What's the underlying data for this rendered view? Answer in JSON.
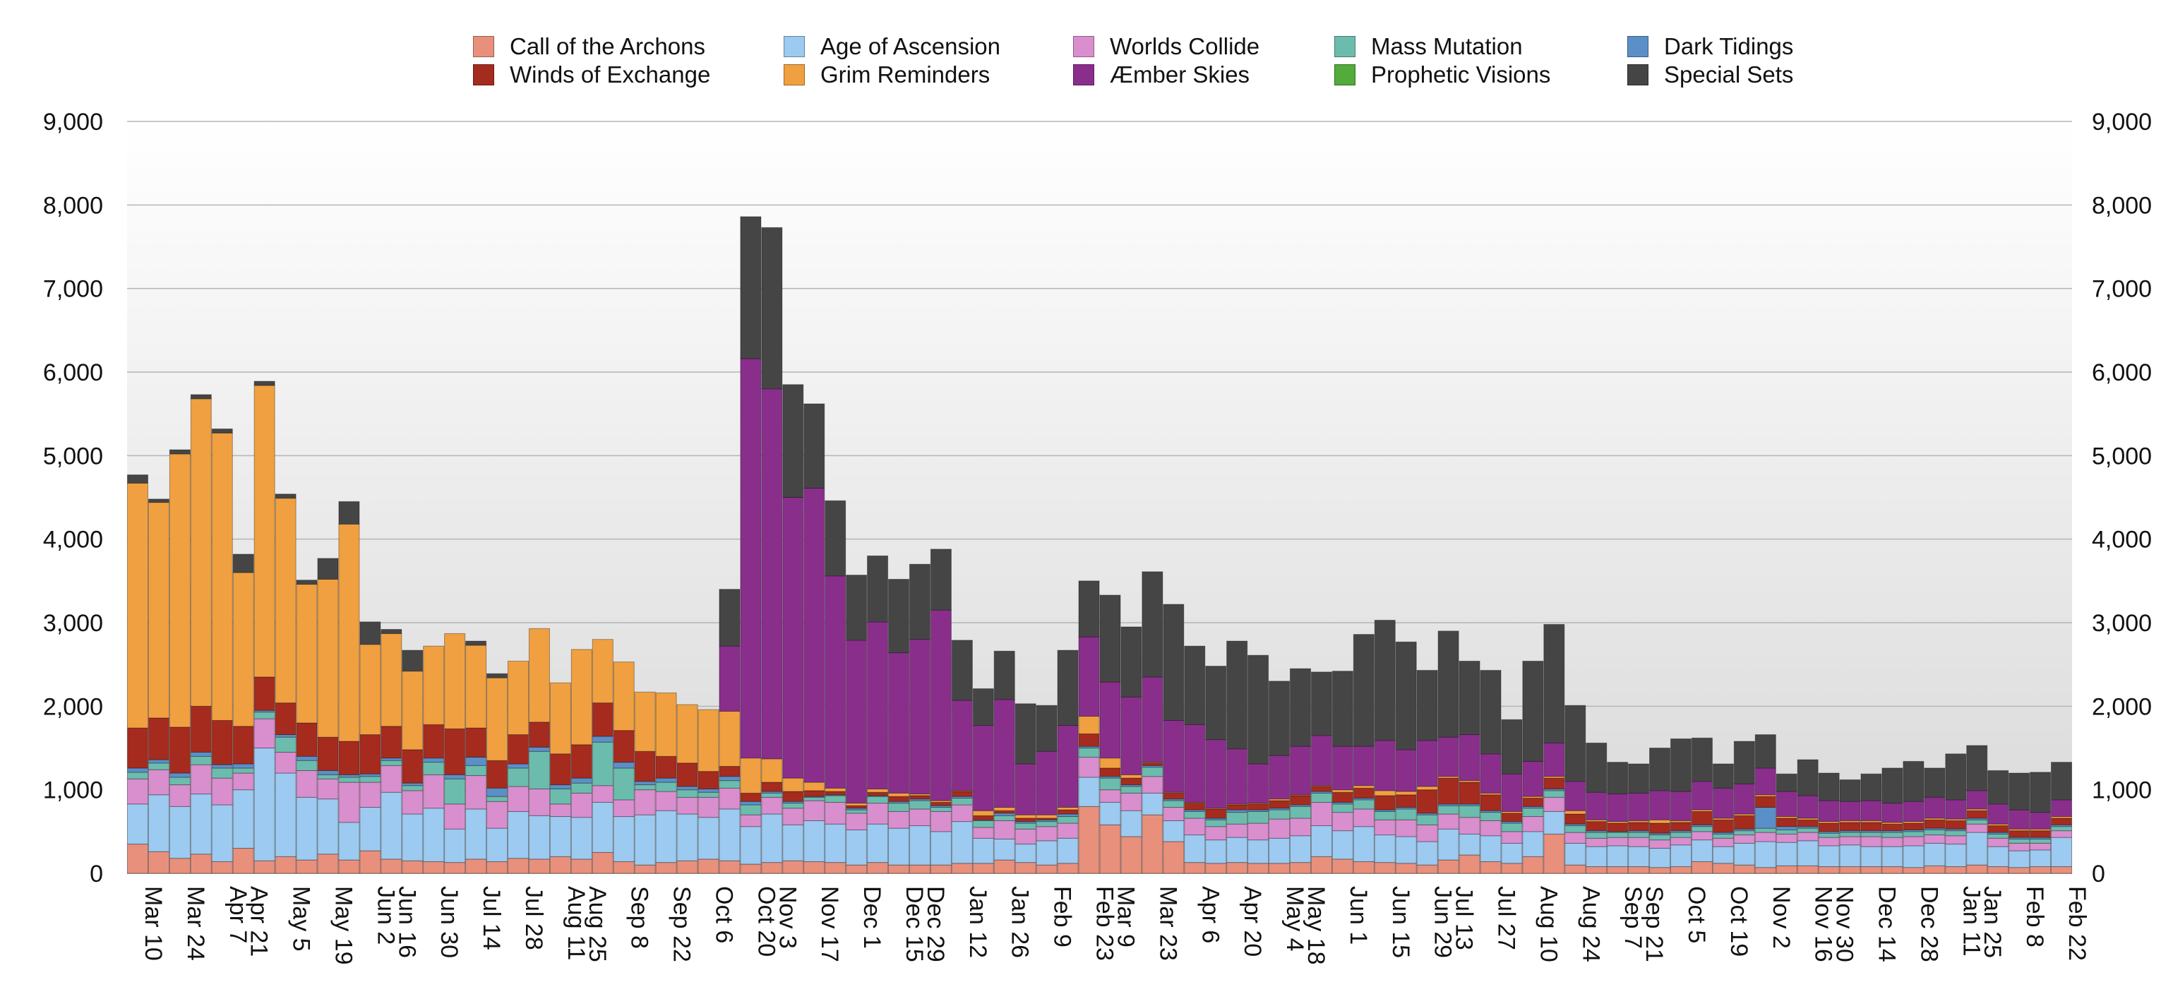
{
  "chart_data": {
    "type": "bar",
    "stacked": true,
    "title": "",
    "xlabel": "",
    "ylabel": "",
    "ylim": [
      0,
      9000
    ],
    "yticks": [
      0,
      1000,
      2000,
      3000,
      4000,
      5000,
      6000,
      7000,
      8000,
      9000
    ],
    "ytick_labels": [
      "0",
      "1,000",
      "2,000",
      "3,000",
      "4,000",
      "5,000",
      "6,000",
      "7,000",
      "8,000",
      "9,000"
    ],
    "y_axis_both_sides": true,
    "grid": true,
    "legend_position": "top",
    "xtick_labels": [
      "Mar 10",
      "Mar 24",
      "Apr 7",
      "Apr 21",
      "May 5",
      "May 19",
      "Jun 2",
      "Jun 16",
      "Jun 30",
      "Jul 14",
      "Jul 28",
      "Aug 11",
      "Aug 25",
      "Sep 8",
      "Sep 22",
      "Oct 6",
      "Oct 20",
      "Nov 3",
      "Nov 17",
      "Dec 1",
      "Dec 15",
      "Dec 29",
      "Jan 12",
      "Jan 26",
      "Feb 9",
      "Feb 23",
      "Mar 9",
      "Mar 23",
      "Apr 6",
      "Apr 20",
      "May 4",
      "May 18",
      "Jun 1",
      "Jun 15",
      "Jun 29",
      "Jul 13",
      "Jul 27",
      "Aug 10",
      "Aug 24",
      "Sep 7",
      "Sep 21",
      "Oct 5",
      "Oct 19",
      "Nov 2",
      "Nov 16",
      "Nov 30",
      "Dec 14",
      "Dec 28",
      "Jan 11",
      "Jan 25",
      "Feb 8",
      "Feb 22"
    ],
    "series": [
      {
        "name": "Call of the Archons",
        "color": "#e8907c",
        "values": [
          350,
          260,
          180,
          230,
          140,
          300,
          150,
          200,
          160,
          230,
          160,
          270,
          170,
          150,
          140,
          130,
          170,
          140,
          180,
          170,
          200,
          170,
          250,
          140,
          100,
          130,
          150,
          170,
          150,
          110,
          130,
          150,
          140,
          130,
          100,
          130,
          100,
          100,
          100,
          120,
          120,
          160,
          130,
          100,
          120,
          800,
          580,
          440,
          700,
          380,
          130,
          120,
          130,
          120,
          120,
          130,
          200,
          170,
          140,
          130,
          120,
          100,
          160,
          220,
          140,
          120,
          200,
          470,
          100,
          80,
          80,
          80,
          70,
          80,
          140,
          120,
          100,
          70,
          90,
          90,
          80,
          80,
          80,
          80,
          70,
          90,
          80,
          100,
          80,
          70,
          80,
          80
        ]
      },
      {
        "name": "Age of Ascension",
        "color": "#9ccaf0",
        "values": [
          480,
          680,
          620,
          720,
          680,
          700,
          1350,
          1000,
          750,
          660,
          450,
          520,
          800,
          560,
          640,
          400,
          600,
          400,
          560,
          520,
          480,
          500,
          600,
          540,
          600,
          620,
          560,
          500,
          620,
          450,
          580,
          430,
          490,
          460,
          420,
          460,
          440,
          470,
          400,
          500,
          300,
          250,
          220,
          290,
          300,
          350,
          270,
          310,
          260,
          250,
          330,
          280,
          300,
          280,
          300,
          320,
          370,
          340,
          420,
          330,
          320,
          280,
          370,
          250,
          310,
          240,
          300,
          270,
          260,
          240,
          250,
          240,
          230,
          260,
          260,
          200,
          260,
          310,
          280,
          300,
          250,
          260,
          240,
          240,
          260,
          270,
          270,
          390,
          240,
          200,
          200,
          350
        ]
      },
      {
        "name": "Worlds Collide",
        "color": "#d98ece",
        "values": [
          300,
          300,
          260,
          350,
          320,
          200,
          350,
          250,
          320,
          240,
          480,
          300,
          320,
          280,
          400,
          300,
          400,
          320,
          300,
          320,
          150,
          290,
          200,
          200,
          300,
          230,
          200,
          240,
          250,
          140,
          200,
          200,
          240,
          260,
          200,
          250,
          200,
          200,
          240,
          200,
          130,
          220,
          180,
          170,
          180,
          240,
          150,
          210,
          200,
          160,
          200,
          160,
          160,
          200,
          230,
          210,
          280,
          220,
          210,
          180,
          200,
          200,
          180,
          200,
          180,
          140,
          180,
          170,
          130,
          100,
          100,
          110,
          100,
          90,
          100,
          100,
          100,
          110,
          100,
          100,
          100,
          100,
          120,
          110,
          110,
          100,
          100,
          100,
          100,
          90,
          80,
          80
        ]
      },
      {
        "name": "Mass Mutation",
        "color": "#6cbcad",
        "values": [
          80,
          80,
          90,
          100,
          120,
          60,
          80,
          180,
          120,
          50,
          60,
          70,
          60,
          60,
          150,
          300,
          120,
          60,
          220,
          450,
          180,
          120,
          520,
          380,
          60,
          110,
          90,
          60,
          90,
          120,
          50,
          60,
          40,
          80,
          40,
          80,
          100,
          100,
          50,
          80,
          80,
          60,
          70,
          60,
          80,
          110,
          140,
          80,
          110,
          80,
          80,
          80,
          140,
          140,
          110,
          140,
          110,
          100,
          110,
          100,
          130,
          120,
          100,
          140,
          100,
          100,
          100,
          80,
          80,
          70,
          60,
          60,
          60,
          60,
          60,
          50,
          50,
          50,
          50,
          50,
          50,
          50,
          50,
          60,
          60,
          60,
          60,
          50,
          50,
          50,
          50,
          50
        ]
      },
      {
        "name": "Dark Tidings",
        "color": "#5b8fc7",
        "values": [
          50,
          40,
          50,
          50,
          40,
          50,
          20,
          30,
          50,
          50,
          30,
          30,
          30,
          30,
          50,
          50,
          100,
          100,
          50,
          50,
          50,
          60,
          70,
          70,
          40,
          50,
          40,
          40,
          50,
          40,
          20,
          20,
          10,
          10,
          20,
          10,
          20,
          20,
          20,
          20,
          10,
          30,
          20,
          20,
          30,
          20,
          20,
          20,
          20,
          20,
          20,
          20,
          30,
          20,
          20,
          20,
          20,
          20,
          20,
          20,
          20,
          20,
          20,
          20,
          20,
          20,
          20,
          20,
          20,
          20,
          10,
          20,
          20,
          20,
          20,
          20,
          20,
          250,
          40,
          20,
          20,
          20,
          20,
          20,
          20,
          20,
          20,
          20,
          20,
          20,
          20,
          20
        ]
      },
      {
        "name": "Winds of Exchange",
        "color": "#a52b1e",
        "values": [
          480,
          500,
          550,
          550,
          530,
          450,
          400,
          380,
          400,
          400,
          400,
          470,
          380,
          400,
          400,
          550,
          350,
          330,
          350,
          300,
          370,
          400,
          400,
          380,
          360,
          260,
          280,
          210,
          120,
          100,
          110,
          120,
          70,
          40,
          30,
          40,
          60,
          40,
          40,
          60,
          50,
          30,
          40,
          20,
          50,
          150,
          100,
          80,
          30,
          70,
          80,
          110,
          60,
          70,
          90,
          110,
          60,
          120,
          120,
          170,
          150,
          280,
          310,
          260,
          190,
          100,
          100,
          130,
          120,
          110,
          100,
          100,
          120,
          100,
          160,
          150,
          160,
          130,
          100,
          80,
          100,
          100,
          100,
          80,
          80,
          100,
          100,
          90,
          80,
          80,
          80,
          80
        ]
      },
      {
        "name": "Grim Reminders",
        "color": "#f0a040",
        "values": [
          2930,
          2580,
          3270,
          3680,
          3440,
          1840,
          3490,
          2450,
          1660,
          1890,
          2600,
          1080,
          1110,
          940,
          940,
          1140,
          990,
          990,
          880,
          1120,
          850,
          1140,
          760,
          820,
          710,
          760,
          700,
          740,
          660,
          420,
          280,
          160,
          100,
          40,
          30,
          40,
          40,
          20,
          20,
          10,
          60,
          40,
          40,
          40,
          30,
          210,
          120,
          40,
          10,
          10,
          10,
          10,
          10,
          10,
          20,
          10,
          10,
          30,
          30,
          60,
          40,
          40,
          20,
          20,
          20,
          20,
          20,
          20,
          40,
          20,
          20,
          20,
          40,
          20,
          20,
          20,
          20,
          20,
          20,
          20,
          20,
          20,
          20,
          20,
          20,
          20,
          20,
          20,
          20,
          20,
          20,
          20
        ]
      },
      {
        "name": "Æmber Skies",
        "color": "#8a2e8c",
        "values": [
          0,
          0,
          0,
          0,
          0,
          0,
          0,
          0,
          0,
          0,
          0,
          0,
          0,
          0,
          0,
          0,
          0,
          0,
          0,
          0,
          0,
          0,
          0,
          0,
          0,
          0,
          0,
          0,
          780,
          4780,
          4430,
          3360,
          3520,
          2540,
          1950,
          2000,
          1680,
          1850,
          2280,
          1080,
          1020,
          1290,
          610,
          760,
          980,
          950,
          910,
          930,
          1020,
          860,
          930,
          820,
          660,
          470,
          520,
          580,
          600,
          520,
          470,
          600,
          500,
          550,
          470,
          550,
          470,
          450,
          420,
          400,
          350,
          330,
          330,
          330,
          350,
          350,
          340,
          360,
          360,
          320,
          300,
          270,
          250,
          230,
          240,
          230,
          240,
          250,
          230,
          220,
          240,
          230,
          200,
          200
        ]
      },
      {
        "name": "Prophetic Visions",
        "color": "#52ab3a",
        "values": [
          0,
          0,
          0,
          0,
          0,
          0,
          0,
          0,
          0,
          0,
          0,
          0,
          0,
          0,
          0,
          0,
          0,
          0,
          0,
          0,
          0,
          0,
          0,
          0,
          0,
          0,
          0,
          0,
          0,
          0,
          0,
          0,
          0,
          0,
          0,
          0,
          0,
          0,
          0,
          0,
          0,
          0,
          0,
          0,
          0,
          0,
          0,
          0,
          0,
          0,
          0,
          0,
          0,
          0,
          0,
          0,
          0,
          0,
          0,
          0,
          0,
          0,
          0,
          0,
          0,
          0,
          0,
          0,
          0,
          0,
          0,
          0,
          0,
          0,
          0,
          0,
          0,
          0,
          0,
          0,
          0,
          0,
          0,
          0,
          0,
          0,
          0,
          0,
          0,
          0,
          0,
          0
        ]
      },
      {
        "name": "Special Sets",
        "color": "#454545",
        "values": [
          100,
          40,
          50,
          50,
          50,
          220,
          50,
          50,
          50,
          250,
          270,
          270,
          50,
          250,
          0,
          0,
          50,
          50,
          0,
          0,
          0,
          0,
          0,
          0,
          0,
          0,
          0,
          0,
          680,
          1700,
          1930,
          1350,
          1010,
          900,
          780,
          790,
          880,
          900,
          730,
          720,
          440,
          580,
          720,
          550,
          900,
          670,
          1040,
          840,
          1260,
          1390,
          940,
          880,
          1290,
          1300,
          890,
          930,
          760,
          900,
          1340,
          1440,
          1290,
          840,
          1270,
          880,
          1000,
          650,
          1200,
          1420,
          910,
          590,
          380,
          350,
          510,
          630,
          520,
          290,
          510,
          400,
          210,
          430,
          330,
          260,
          320,
          420,
          480,
          350,
          550,
          540,
          400,
          440,
          480,
          450
        ]
      }
    ]
  }
}
